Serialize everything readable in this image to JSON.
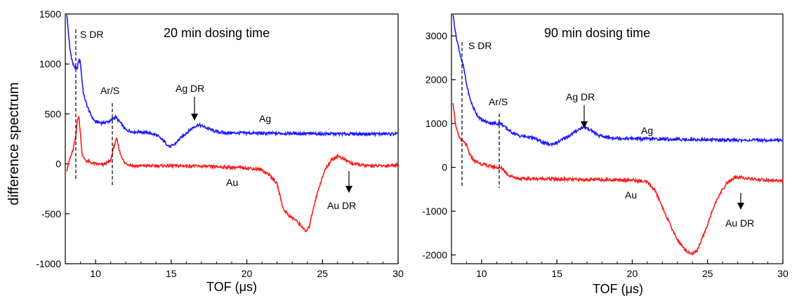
{
  "figure": {
    "ylabel": "difference spectrum",
    "xunit_label": "TOF (μs)"
  },
  "chart_data": [
    {
      "type": "line",
      "title": "20 min dosing time",
      "xlabel": "TOF (μs)",
      "ylabel": "difference spectrum",
      "xlim": [
        8,
        30
      ],
      "ylim": [
        -1000,
        1500
      ],
      "xticks": [
        10,
        15,
        20,
        25,
        30
      ],
      "yticks": [
        -1000,
        -500,
        0,
        500,
        1000,
        1500
      ],
      "grid": false,
      "series": [
        {
          "name": "Ag",
          "color": "#1a1aff",
          "x": [
            8.1,
            8.3,
            8.5,
            8.7,
            8.8,
            8.9,
            9.0,
            9.1,
            9.2,
            9.4,
            9.6,
            9.8,
            10.0,
            10.5,
            11.0,
            11.3,
            11.6,
            12.0,
            12.5,
            13.0,
            13.5,
            14.0,
            14.5,
            14.9,
            15.2,
            15.5,
            16.0,
            16.5,
            16.8,
            17.2,
            17.8,
            18.5,
            19.5,
            21.0,
            23.0,
            25.0,
            27.0,
            29.0,
            30.0
          ],
          "y": [
            1500,
            1150,
            1000,
            950,
            960,
            1050,
            1010,
            850,
            700,
            600,
            520,
            460,
            420,
            410,
            430,
            470,
            420,
            340,
            320,
            320,
            310,
            290,
            230,
            170,
            190,
            240,
            310,
            370,
            390,
            370,
            330,
            310,
            310,
            305,
            305,
            300,
            300,
            300,
            300
          ]
        },
        {
          "name": "Au",
          "color": "#ff1a1a",
          "x": [
            8.1,
            8.3,
            8.5,
            8.7,
            8.8,
            8.9,
            9.0,
            9.1,
            9.2,
            9.4,
            9.7,
            10.0,
            10.5,
            11.0,
            11.2,
            11.4,
            11.6,
            11.9,
            12.5,
            14.0,
            16.0,
            18.0,
            20.0,
            21.0,
            21.5,
            22.0,
            22.4,
            22.8,
            23.2,
            23.6,
            23.9,
            24.1,
            24.4,
            24.8,
            25.2,
            25.6,
            26.0,
            26.5,
            27.0,
            28.0,
            29.0,
            30.0
          ],
          "y": [
            -60,
            50,
            130,
            280,
            450,
            470,
            300,
            120,
            60,
            30,
            10,
            0,
            -10,
            30,
            170,
            250,
            120,
            10,
            -20,
            -20,
            -20,
            -30,
            -40,
            -60,
            -110,
            -200,
            -450,
            -520,
            -560,
            -620,
            -680,
            -640,
            -440,
            -220,
            -50,
            40,
            80,
            40,
            0,
            -20,
            -20,
            -10
          ]
        }
      ],
      "annotations": [
        "S DR",
        "Ar/S",
        "Ag DR",
        "Au DR"
      ],
      "series_labels": [
        "Ag",
        "Au"
      ]
    },
    {
      "type": "line",
      "title": "90 min dosing time",
      "xlabel": "TOF (μs)",
      "ylabel": "",
      "xlim": [
        8,
        30
      ],
      "ylim": [
        -2200,
        3500
      ],
      "xticks": [
        10,
        15,
        20,
        25,
        30
      ],
      "yticks": [
        -2000,
        -1000,
        0,
        1000,
        2000,
        3000
      ],
      "grid": false,
      "series": [
        {
          "name": "Ag",
          "color": "#1a1aff",
          "x": [
            8.1,
            8.3,
            8.5,
            8.7,
            8.8,
            8.9,
            9.0,
            9.2,
            9.4,
            9.7,
            10.0,
            10.5,
            11.0,
            11.3,
            11.6,
            12.0,
            12.5,
            13.0,
            13.5,
            14.0,
            14.5,
            15.0,
            15.5,
            16.0,
            16.5,
            16.8,
            17.2,
            17.8,
            18.5,
            19.5,
            21.0,
            23.0,
            25.0,
            27.0,
            29.0,
            30.0
          ],
          "y": [
            3500,
            3000,
            2700,
            2400,
            2300,
            2100,
            1900,
            1600,
            1400,
            1200,
            1080,
            1020,
            1000,
            1000,
            900,
            800,
            720,
            700,
            660,
            580,
            520,
            560,
            660,
            760,
            880,
            930,
            860,
            720,
            680,
            660,
            650,
            640,
            630,
            620,
            620,
            620
          ]
        },
        {
          "name": "Au",
          "color": "#ff1a1a",
          "x": [
            8.1,
            8.3,
            8.5,
            8.7,
            8.9,
            9.0,
            9.2,
            9.5,
            10.0,
            10.5,
            11.0,
            11.4,
            11.8,
            12.5,
            14.0,
            16.0,
            18.0,
            20.0,
            21.0,
            21.5,
            22.0,
            22.5,
            23.0,
            23.5,
            23.9,
            24.3,
            24.8,
            25.3,
            25.8,
            26.3,
            26.8,
            27.2,
            28.0,
            29.0,
            30.0
          ],
          "y": [
            1500,
            900,
            700,
            600,
            550,
            500,
            300,
            150,
            80,
            30,
            0,
            -30,
            -180,
            -260,
            -260,
            -280,
            -280,
            -290,
            -340,
            -520,
            -900,
            -1300,
            -1650,
            -1880,
            -1980,
            -1900,
            -1500,
            -1000,
            -620,
            -350,
            -240,
            -230,
            -270,
            -300,
            -300
          ]
        }
      ],
      "annotations": [
        "S DR",
        "Ar/S",
        "Ag DR",
        "Au DR"
      ],
      "series_labels": [
        "Ag",
        "Au"
      ]
    }
  ]
}
